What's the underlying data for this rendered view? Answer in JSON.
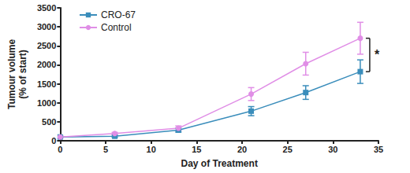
{
  "chart_data": {
    "type": "line",
    "xlabel": "Day of Treatment",
    "ylabel": "Tumour volume\n(% of start)",
    "x": [
      0,
      6,
      13,
      21,
      27,
      33
    ],
    "series": [
      {
        "name": "CRO-67",
        "color": "#3a8dbb",
        "marker": "square",
        "values": [
          100,
          120,
          280,
          780,
          1270,
          1820
        ],
        "errors": [
          20,
          30,
          50,
          120,
          180,
          310
        ]
      },
      {
        "name": "Control",
        "color": "#e08ee6",
        "marker": "circle",
        "values": [
          100,
          190,
          330,
          1230,
          2030,
          2700
        ],
        "errors": [
          20,
          30,
          60,
          170,
          300,
          420
        ]
      }
    ],
    "xlim": [
      0,
      35
    ],
    "xticks": [
      0,
      5,
      10,
      15,
      20,
      25,
      30,
      35
    ],
    "ylim": [
      0,
      3500
    ],
    "yticks": [
      0,
      500,
      1000,
      1500,
      2000,
      2500,
      3000,
      3500
    ],
    "grid": false,
    "legend": "upper left",
    "annotations": [
      {
        "text": "*"
      }
    ]
  }
}
